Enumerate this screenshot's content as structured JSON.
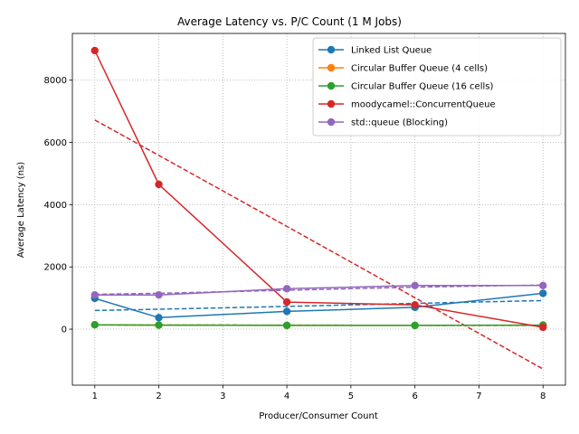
{
  "chart_data": {
    "type": "line",
    "title": "Average Latency vs. P/C Count (1 M Jobs)",
    "xlabel": "Producer/Consumer Count",
    "ylabel": "Average Latency (ns)",
    "x": [
      1,
      2,
      4,
      6,
      8
    ],
    "xticks": [
      "1",
      "2",
      "3",
      "4",
      "5",
      "6",
      "7",
      "8"
    ],
    "yticks": [
      "0",
      "2000",
      "4000",
      "6000",
      "8000"
    ],
    "xlim": [
      0.65,
      8.35
    ],
    "ylim": [
      -1800,
      9500
    ],
    "grid": true,
    "grid_style": "dotted",
    "legend_position": "upper right",
    "series": [
      {
        "name": "Linked List Queue",
        "color": "#1f77b4",
        "values": [
          990,
          370,
          570,
          700,
          1150
        ],
        "trend": [
          600,
          640,
          730,
          830,
          920
        ]
      },
      {
        "name": "Circular Buffer Queue (4 cells)",
        "color": "#ff7f0e",
        "values": [
          140,
          130,
          120,
          120,
          130
        ],
        "trend": [
          135,
          132,
          128,
          124,
          120
        ]
      },
      {
        "name": "Circular Buffer Queue (16 cells)",
        "color": "#2ca02c",
        "values": [
          140,
          130,
          120,
          120,
          130
        ],
        "trend": [
          135,
          132,
          128,
          124,
          120
        ]
      },
      {
        "name": "moodycamel::ConcurrentQueue",
        "color": "#d62728",
        "values": [
          8950,
          4650,
          870,
          780,
          60
        ],
        "trend": [
          6720,
          5580,
          3300,
          1010,
          -1280
        ]
      },
      {
        "name": "std::queue (Blocking)",
        "color": "#9467bd",
        "values": [
          1100,
          1100,
          1300,
          1400,
          1400
        ],
        "trend": [
          1120,
          1150,
          1250,
          1350,
          1420
        ]
      }
    ]
  }
}
